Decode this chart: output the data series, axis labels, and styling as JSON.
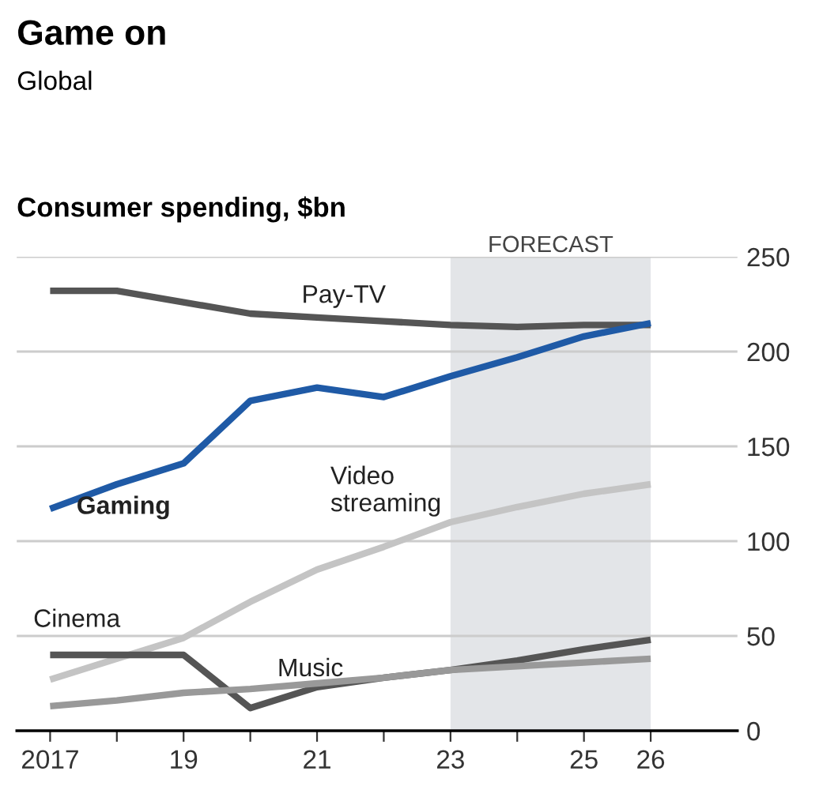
{
  "chart_data": {
    "type": "line",
    "title": "Game on",
    "subtitle": "Global",
    "ylabel": "Consumer spending, $bn",
    "x": [
      2017,
      2018,
      2019,
      2020,
      2021,
      2022,
      2023,
      2024,
      2025,
      2026
    ],
    "series": [
      {
        "name": "Pay-TV",
        "color": "#555555",
        "values": [
          232,
          232,
          226,
          220,
          218,
          216,
          214,
          213,
          214,
          214
        ]
      },
      {
        "name": "Gaming",
        "color": "#1f5aa6",
        "values": [
          117,
          130,
          141,
          174,
          181,
          176,
          187,
          197,
          208,
          215
        ]
      },
      {
        "name": "Video streaming",
        "color": "#c4c4c4",
        "values": [
          27,
          38,
          49,
          68,
          85,
          97,
          110,
          118,
          125,
          130
        ]
      },
      {
        "name": "Cinema",
        "color": "#555555",
        "values": [
          40,
          40,
          40,
          12,
          23,
          28,
          32,
          37,
          43,
          48
        ]
      },
      {
        "name": "Music",
        "color": "#999999",
        "values": [
          13,
          16,
          20,
          22,
          25,
          28,
          32,
          34,
          36,
          38
        ]
      }
    ],
    "xlim": [
      2016.5,
      2027.3
    ],
    "ylim": [
      0,
      250
    ],
    "xticks": [
      {
        "value": 2017,
        "label": "2017"
      },
      {
        "value": 2018,
        "label": null
      },
      {
        "value": 2019,
        "label": "19"
      },
      {
        "value": 2020,
        "label": null
      },
      {
        "value": 2021,
        "label": "21"
      },
      {
        "value": 2022,
        "label": null
      },
      {
        "value": 2023,
        "label": "23"
      },
      {
        "value": 2024,
        "label": null
      },
      {
        "value": 2025,
        "label": "25"
      },
      {
        "value": 2026,
        "label": "26"
      }
    ],
    "yticks": [
      0,
      50,
      100,
      150,
      200,
      250
    ],
    "bands": [
      {
        "axis": "x",
        "from": 2023,
        "to": 2026,
        "label": "FORECAST",
        "color": "#e3e5e8"
      }
    ],
    "grid": "y",
    "legend": false
  }
}
